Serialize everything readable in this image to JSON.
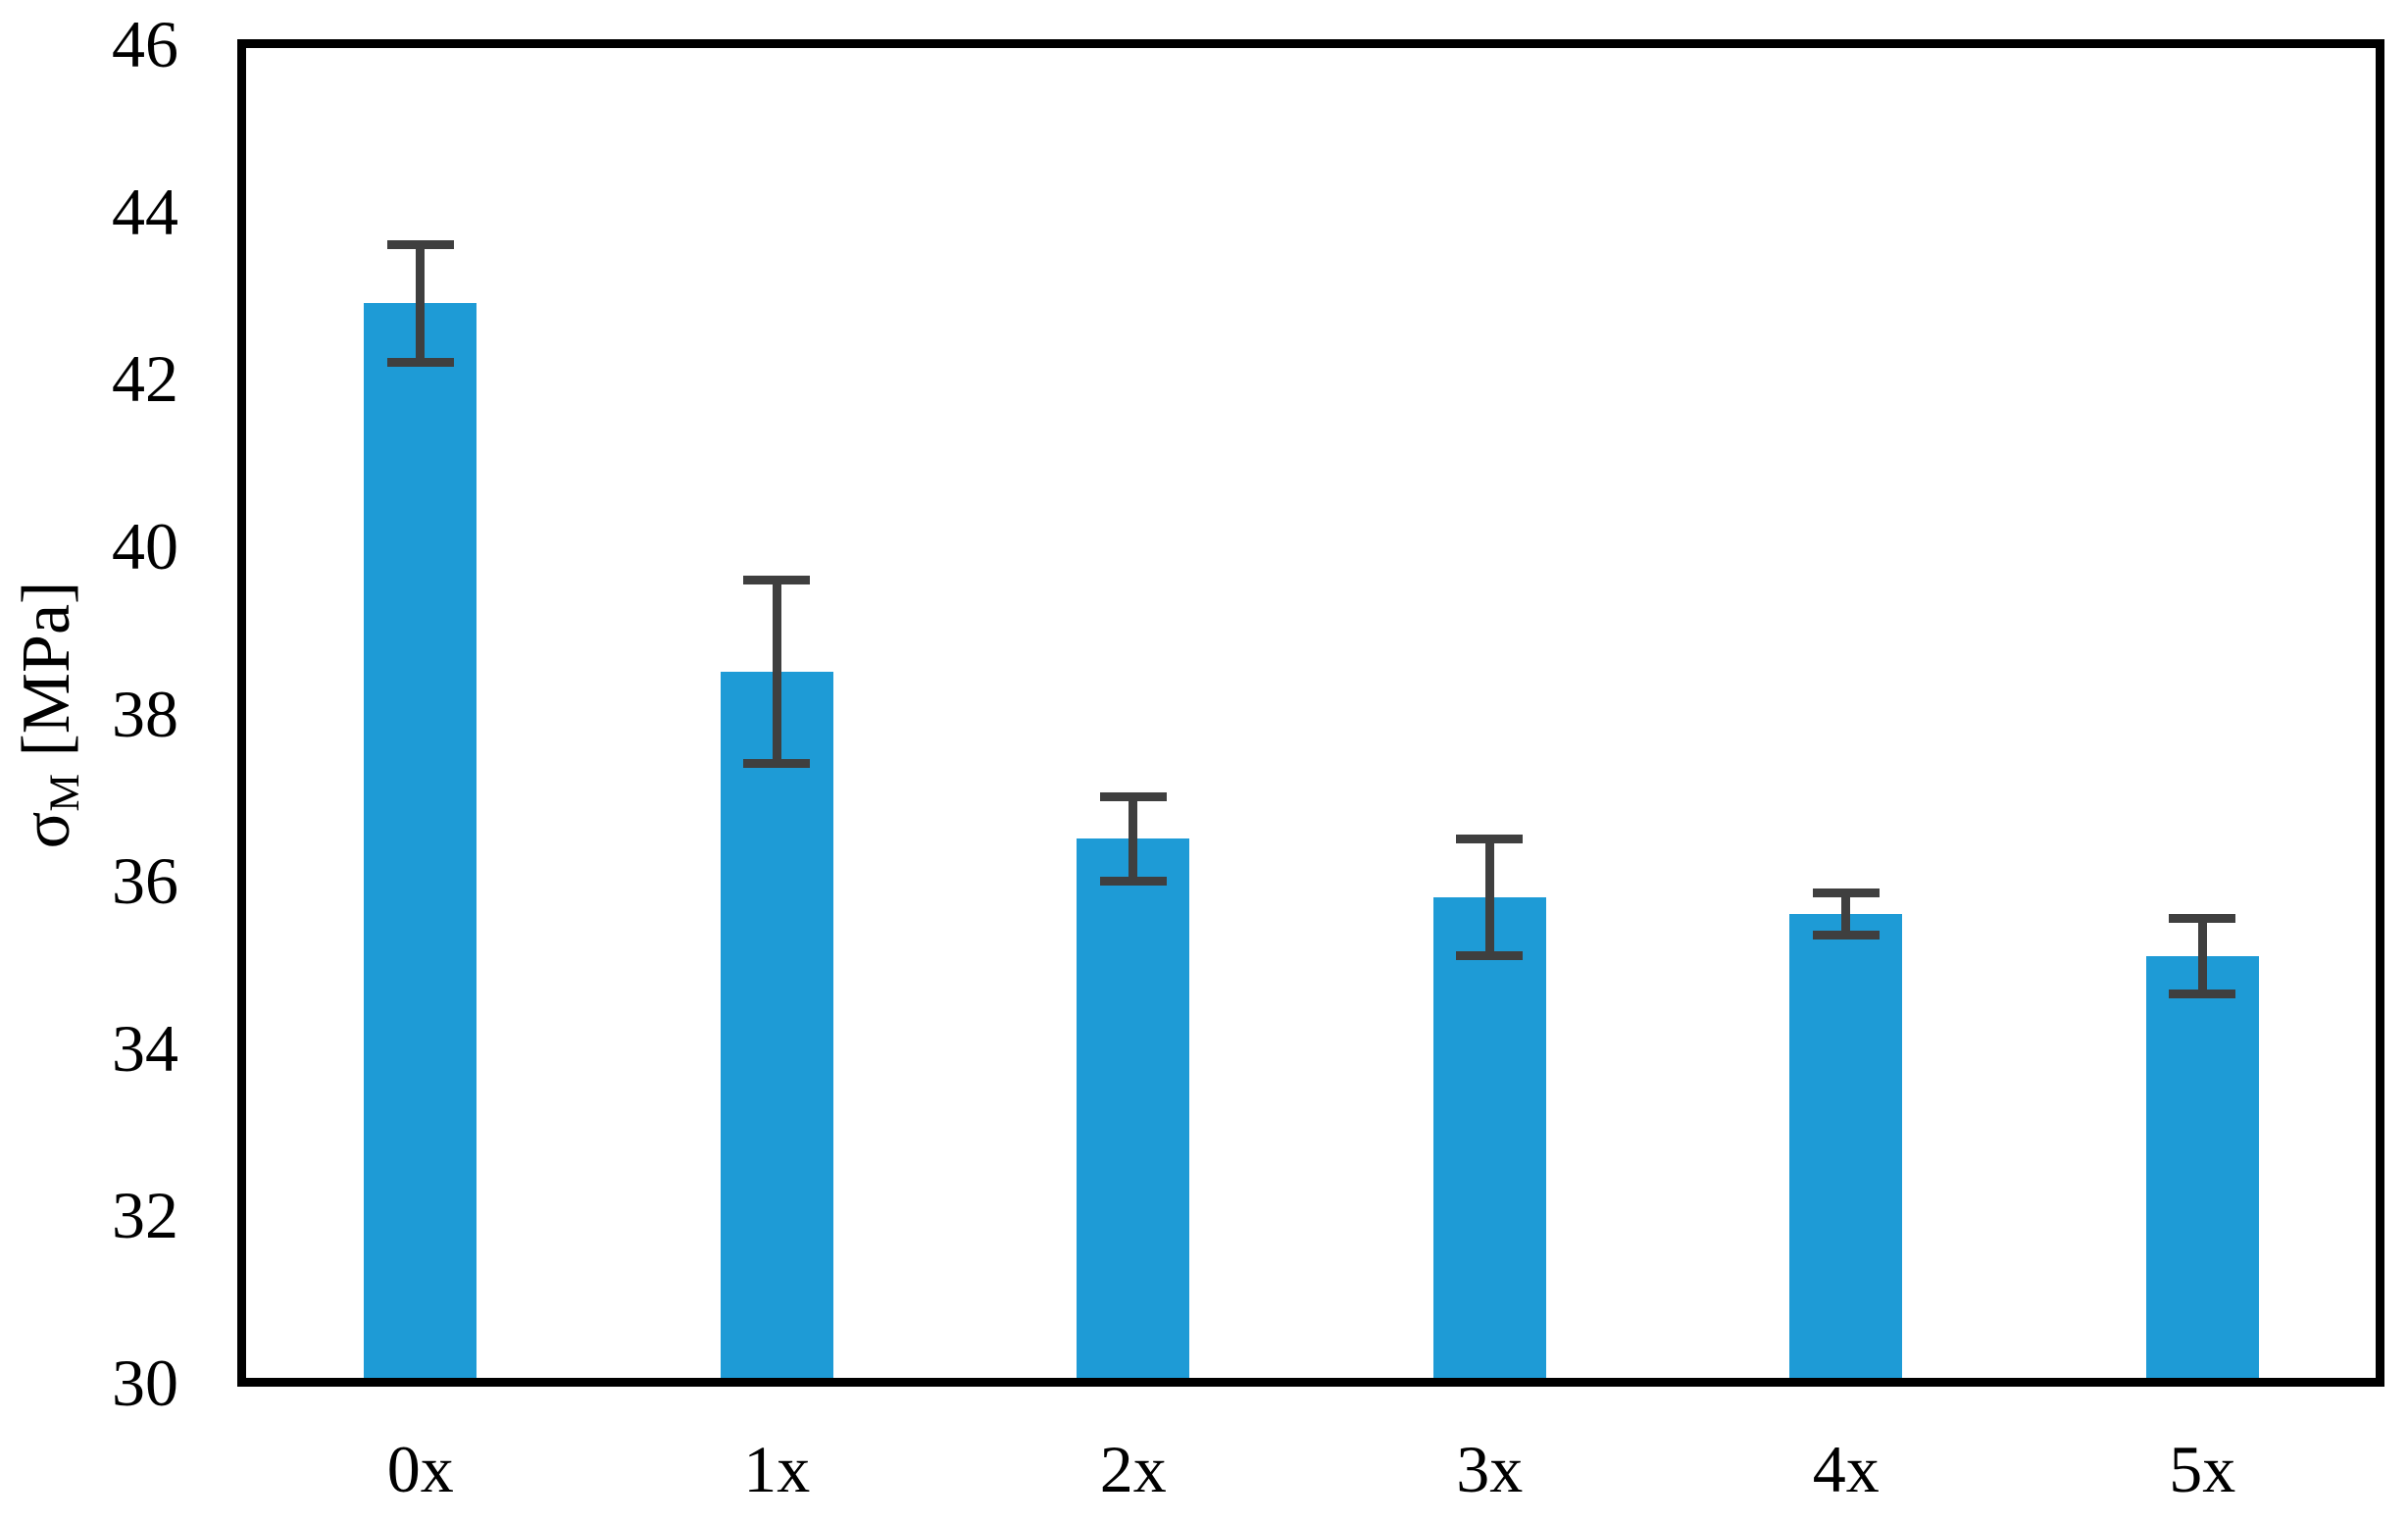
{
  "chart_data": {
    "type": "bar",
    "title": "",
    "categories": [
      "0x",
      "1x",
      "2x",
      "3x",
      "4x",
      "5x"
    ],
    "values": [
      42.9,
      38.5,
      36.5,
      35.8,
      35.6,
      35.1
    ],
    "error_bars": [
      0.7,
      1.1,
      0.5,
      0.7,
      0.25,
      0.45
    ],
    "xlabel": "",
    "ylabel": "σM [MPa]",
    "ylabel_parts": {
      "symbol": "σ",
      "subscript": "M",
      "unit": " [MPa]"
    },
    "yticks": [
      "46",
      "44",
      "42",
      "40",
      "38",
      "36",
      "34",
      "32",
      "30"
    ],
    "ytick_values": [
      46,
      44,
      42,
      40,
      38,
      36,
      34,
      32,
      30
    ],
    "ylim": [
      30,
      46
    ],
    "grid": false,
    "legend": false,
    "bar_color": "#1E9BD6",
    "error_bar_color": "#3F3F3F",
    "axis_color": "#000000",
    "background_color": "#FFFFFF"
  }
}
